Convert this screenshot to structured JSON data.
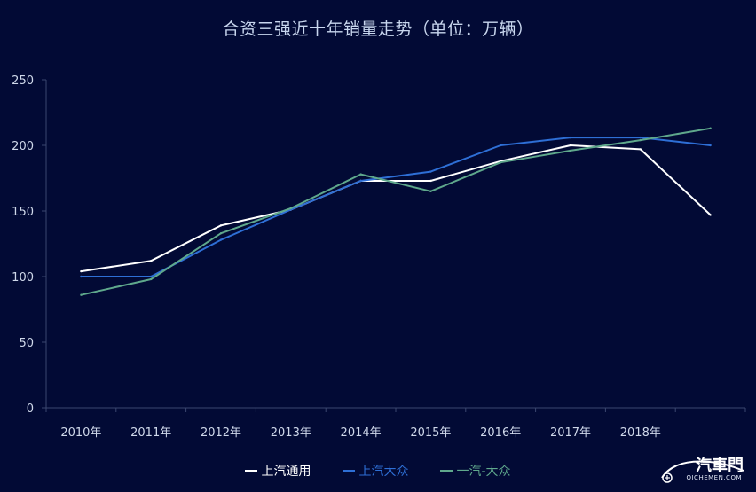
{
  "chart_data": {
    "type": "line",
    "title": "合资三强近十年销量走势（单位：万辆）",
    "categories": [
      "2010年",
      "2011年",
      "2012年",
      "2013年",
      "2014年",
      "2015年",
      "2016年",
      "2017年",
      "2018年",
      ""
    ],
    "ylim": [
      0,
      250
    ],
    "yticks": [
      0,
      50,
      100,
      150,
      200,
      250
    ],
    "grid": false,
    "legend_position": "bottom-center",
    "series": [
      {
        "name": "上汽通用",
        "color": "#ffffff",
        "values": [
          104,
          112,
          139,
          151,
          173,
          173,
          188,
          200,
          197,
          147
        ]
      },
      {
        "name": "上汽大众",
        "color": "#2e6fd6",
        "values": [
          100,
          100,
          128,
          151,
          173,
          180,
          200,
          206,
          206,
          200
        ]
      },
      {
        "name": "一汽-大众",
        "color": "#5fa88c",
        "values": [
          86,
          98,
          133,
          152,
          178,
          165,
          187,
          196,
          204,
          213
        ]
      }
    ]
  },
  "watermark": {
    "brand": "汽車門",
    "site": "QICHEMEN.COM",
    "icon": "car-logo-icon"
  }
}
